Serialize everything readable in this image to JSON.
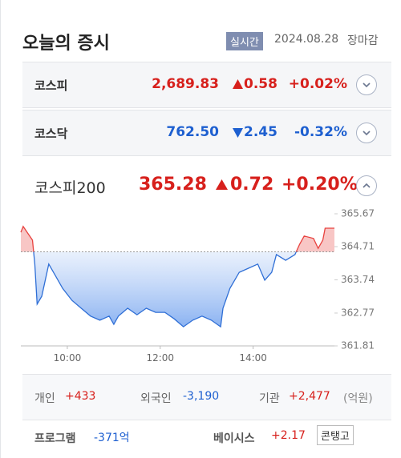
{
  "header": {
    "title": "오늘의 증시",
    "badge": "실시간",
    "date": "2024.08.28",
    "status": "장마감"
  },
  "indices": [
    {
      "name": "코스피",
      "value": "2,689.83",
      "change": "0.58",
      "rate": "+0.02%"
    },
    {
      "name": "코스닥",
      "value": "762.50",
      "change": "2.45",
      "rate": "-0.32%"
    }
  ],
  "featured": {
    "name": "코스피200",
    "value": "365.28",
    "change": "0.72",
    "rate": "+0.20%"
  },
  "chart_data": {
    "type": "line",
    "x": [
      9.0,
      9.05,
      9.15,
      9.25,
      9.3,
      9.35,
      9.45,
      9.6,
      9.75,
      9.9,
      10.1,
      10.3,
      10.5,
      10.7,
      10.9,
      11.0,
      11.1,
      11.3,
      11.5,
      11.7,
      11.9,
      12.1,
      12.3,
      12.5,
      12.7,
      12.9,
      13.1,
      13.3,
      13.35,
      13.5,
      13.7,
      13.9,
      14.1,
      14.25,
      14.4,
      14.5,
      14.7,
      14.9,
      15.0,
      15.1,
      15.3,
      15.4,
      15.5,
      15.55,
      15.75
    ],
    "series": [
      {
        "color": "#2f6fd6",
        "values": [
          365.13,
          365.3,
          365.1,
          364.9,
          364.2,
          363.03,
          363.26,
          364.2,
          363.85,
          363.49,
          363.14,
          362.91,
          362.68,
          362.56,
          362.68,
          362.44,
          362.68,
          362.91,
          362.72,
          362.91,
          362.79,
          362.79,
          362.6,
          362.37,
          362.56,
          362.68,
          362.56,
          362.37,
          362.91,
          363.49,
          363.96,
          364.08,
          364.2,
          363.73,
          363.96,
          364.48,
          364.31,
          364.48,
          364.78,
          365.02,
          364.95,
          364.66,
          364.9,
          365.25,
          365.25
        ]
      }
    ],
    "up_color": "#e8423f",
    "baseline": 364.56,
    "xlim": [
      9,
      15.75
    ],
    "xticks": [
      {
        "value": 10,
        "label": "10:00"
      },
      {
        "value": 12,
        "label": "12:00"
      },
      {
        "value": 14,
        "label": "14:00"
      }
    ],
    "ylim": [
      361.81,
      365.67
    ],
    "yticks": [
      365.67,
      364.71,
      363.74,
      362.77,
      361.81
    ]
  },
  "investors": {
    "items": [
      {
        "label": "개인",
        "value": "+433"
      },
      {
        "label": "외국인",
        "value": "-3,190"
      },
      {
        "label": "기관",
        "value": "+2,477"
      }
    ],
    "unit": "(억원)"
  },
  "program": {
    "label": "프로그램",
    "value": "-371억"
  },
  "basis": {
    "label": "베이시스",
    "value": "+2.17",
    "state": "콘탱고"
  }
}
